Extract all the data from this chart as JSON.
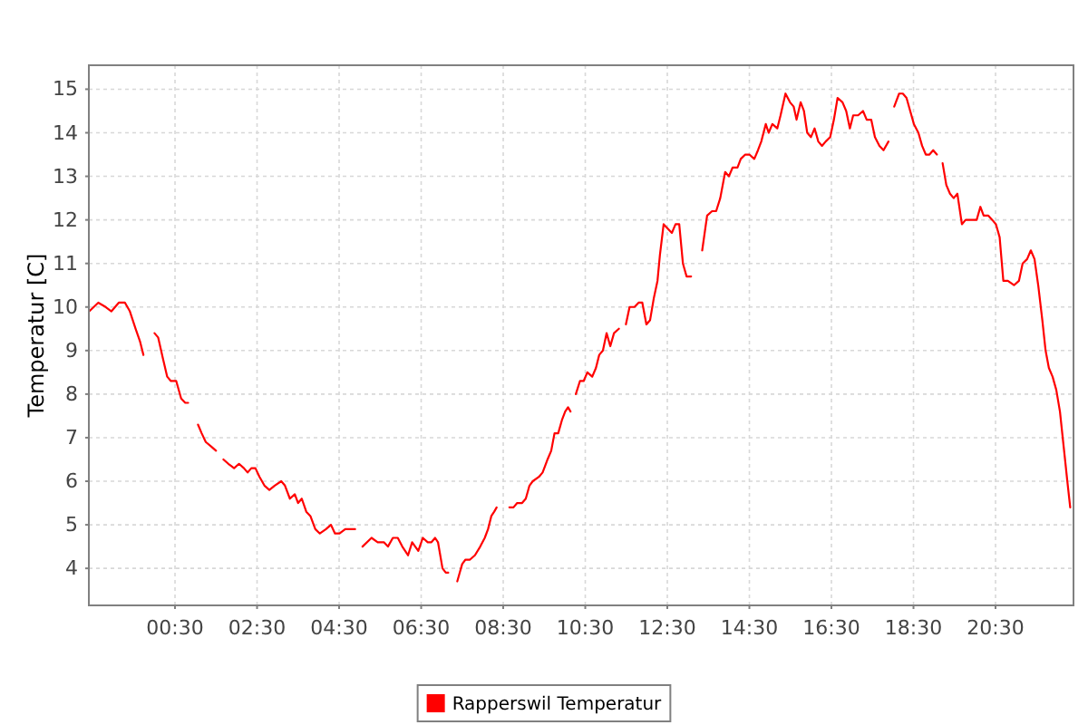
{
  "chart_data": {
    "type": "line",
    "ylabel": "Temperatur [C]",
    "x": [
      -1.59,
      -1.37,
      -1.19,
      -1.05,
      -0.87,
      -0.72,
      -0.6,
      -0.46,
      -0.35,
      -0.27,
      -0.14,
      0.0,
      0.09,
      0.21,
      0.31,
      0.4,
      0.53,
      0.65,
      0.75,
      0.82,
      0.94,
      1.06,
      1.15,
      1.25,
      1.38,
      1.5,
      1.59,
      1.68,
      1.8,
      1.94,
      2.06,
      2.18,
      2.27,
      2.36,
      2.46,
      2.56,
      2.68,
      2.8,
      2.93,
      3.09,
      3.18,
      3.3,
      3.42,
      3.5,
      3.59,
      3.7,
      3.8,
      3.92,
      4.03,
      4.18,
      4.3,
      4.4,
      4.51,
      4.65,
      4.77,
      4.89,
      4.98,
      5.07,
      5.29,
      5.44,
      5.59,
      5.69,
      5.81,
      5.93,
      6.04,
      6.18,
      6.28,
      6.43,
      6.54,
      6.66,
      6.75,
      6.84,
      6.91,
      7.02,
      7.1,
      7.16,
      7.27,
      7.38,
      7.5,
      7.58,
      7.69,
      7.81,
      7.94,
      8.05,
      8.13,
      8.21,
      8.28,
      8.34,
      8.5,
      8.65,
      8.75,
      8.84,
      8.96,
      9.05,
      9.14,
      9.22,
      9.37,
      9.46,
      9.58,
      9.67,
      9.75,
      9.84,
      9.93,
      10.01,
      10.08,
      10.14,
      10.2,
      10.27,
      10.37,
      10.46,
      10.55,
      10.67,
      10.76,
      10.84,
      10.93,
      11.02,
      11.11,
      11.2,
      11.32,
      11.4,
      11.49,
      11.58,
      11.7,
      11.8,
      11.89,
      11.99,
      12.08,
      12.17,
      12.26,
      12.32,
      12.41,
      12.51,
      12.61,
      12.7,
      12.79,
      12.88,
      12.97,
      13.08,
      13.2,
      13.35,
      13.47,
      13.59,
      13.69,
      13.79,
      13.91,
      14.0,
      14.09,
      14.21,
      14.29,
      14.4,
      14.5,
      14.62,
      14.71,
      14.79,
      14.9,
      14.97,
      15.06,
      15.18,
      15.26,
      15.38,
      15.49,
      15.58,
      15.65,
      15.75,
      15.83,
      15.91,
      16.0,
      16.09,
      16.18,
      16.27,
      16.36,
      16.47,
      16.56,
      16.65,
      16.77,
      16.86,
      16.95,
      17.03,
      17.15,
      17.27,
      17.36,
      17.47,
      17.56,
      17.67,
      17.77,
      17.89,
      17.96,
      18.03,
      18.15,
      18.24,
      18.33,
      18.42,
      18.51,
      18.62,
      18.71,
      18.8,
      18.89,
      18.98,
      19.07,
      19.14,
      19.21,
      19.3,
      19.39,
      19.48,
      19.57,
      19.68,
      19.77,
      19.86,
      19.95,
      20.04,
      20.13,
      20.21,
      20.32,
      20.42,
      20.51,
      20.6,
      20.69,
      20.8,
      20.95,
      21.07,
      21.16,
      21.27,
      21.36,
      21.45,
      21.54,
      21.64,
      21.72,
      21.8,
      21.89,
      21.98,
      22.07,
      22.16,
      22.25,
      22.32
    ],
    "series": [
      {
        "name": "Rapperswil Temperatur",
        "color": "#ff0000",
        "values": [
          9.9,
          10.1,
          10.0,
          9.9,
          10.1,
          10.1,
          9.9,
          9.5,
          9.2,
          8.9,
          null,
          9.4,
          9.3,
          8.8,
          8.4,
          8.3,
          8.3,
          7.9,
          7.8,
          7.8,
          null,
          7.3,
          7.1,
          6.9,
          6.8,
          6.7,
          null,
          6.5,
          6.4,
          6.3,
          6.4,
          6.3,
          6.2,
          6.3,
          6.3,
          6.1,
          5.9,
          5.8,
          5.9,
          6.0,
          5.9,
          5.6,
          5.7,
          5.5,
          5.6,
          5.3,
          5.2,
          4.9,
          4.8,
          4.9,
          5.0,
          4.8,
          4.8,
          4.9,
          4.9,
          4.9,
          null,
          4.5,
          4.7,
          4.6,
          4.6,
          4.5,
          4.7,
          4.7,
          4.5,
          4.3,
          4.6,
          4.4,
          4.7,
          4.6,
          4.6,
          4.7,
          4.6,
          4.0,
          3.9,
          3.9,
          null,
          3.7,
          4.1,
          4.2,
          4.2,
          4.3,
          4.5,
          4.7,
          4.9,
          5.2,
          5.3,
          5.4,
          null,
          5.4,
          5.4,
          5.5,
          5.5,
          5.6,
          5.9,
          6.0,
          6.1,
          6.2,
          6.5,
          6.7,
          7.1,
          7.1,
          7.4,
          7.6,
          7.7,
          7.6,
          null,
          8.0,
          8.3,
          8.3,
          8.5,
          8.4,
          8.6,
          8.9,
          9.0,
          9.4,
          9.1,
          9.4,
          9.5,
          null,
          9.6,
          10.0,
          10.0,
          10.1,
          10.1,
          9.6,
          9.7,
          10.2,
          10.6,
          11.2,
          11.9,
          11.8,
          11.7,
          11.9,
          11.9,
          11.0,
          10.7,
          10.7,
          null,
          11.3,
          12.1,
          12.2,
          12.2,
          12.5,
          13.1,
          13.0,
          13.2,
          13.2,
          13.4,
          13.5,
          13.5,
          13.4,
          13.6,
          13.8,
          14.2,
          14.0,
          14.2,
          14.1,
          14.4,
          14.9,
          14.7,
          14.6,
          14.3,
          14.7,
          14.5,
          14.0,
          13.9,
          14.1,
          13.8,
          13.7,
          13.8,
          13.9,
          14.3,
          14.8,
          14.7,
          14.5,
          14.1,
          14.4,
          14.4,
          14.5,
          14.3,
          14.3,
          13.9,
          13.7,
          13.6,
          13.8,
          null,
          14.6,
          14.9,
          14.9,
          14.8,
          14.5,
          14.2,
          14.0,
          13.7,
          13.5,
          13.5,
          13.6,
          13.5,
          null,
          13.3,
          12.8,
          12.6,
          12.5,
          12.6,
          11.9,
          12.0,
          12.0,
          12.0,
          12.0,
          12.3,
          12.1,
          12.1,
          12.0,
          11.9,
          11.6,
          10.6,
          10.6,
          10.5,
          10.6,
          11.0,
          11.1,
          11.3,
          11.1,
          10.5,
          9.7,
          9.0,
          8.6,
          8.4,
          8.1,
          7.6,
          6.8,
          6.0,
          5.4
        ]
      }
    ],
    "xlim": [
      -1.6,
      22.4
    ],
    "xticks": [
      {
        "value": 0.5,
        "label": "00:30"
      },
      {
        "value": 2.5,
        "label": "02:30"
      },
      {
        "value": 4.5,
        "label": "04:30"
      },
      {
        "value": 6.5,
        "label": "06:30"
      },
      {
        "value": 8.5,
        "label": "08:30"
      },
      {
        "value": 10.5,
        "label": "10:30"
      },
      {
        "value": 12.5,
        "label": "12:30"
      },
      {
        "value": 14.5,
        "label": "14:30"
      },
      {
        "value": 16.5,
        "label": "16:30"
      },
      {
        "value": 18.5,
        "label": "18:30"
      },
      {
        "value": 20.5,
        "label": "20:30"
      }
    ],
    "ylim": [
      3.15,
      15.55
    ],
    "yticks": [
      4,
      5,
      6,
      7,
      8,
      9,
      10,
      11,
      12,
      13,
      14,
      15
    ],
    "grid": true,
    "legend": "bottom"
  }
}
